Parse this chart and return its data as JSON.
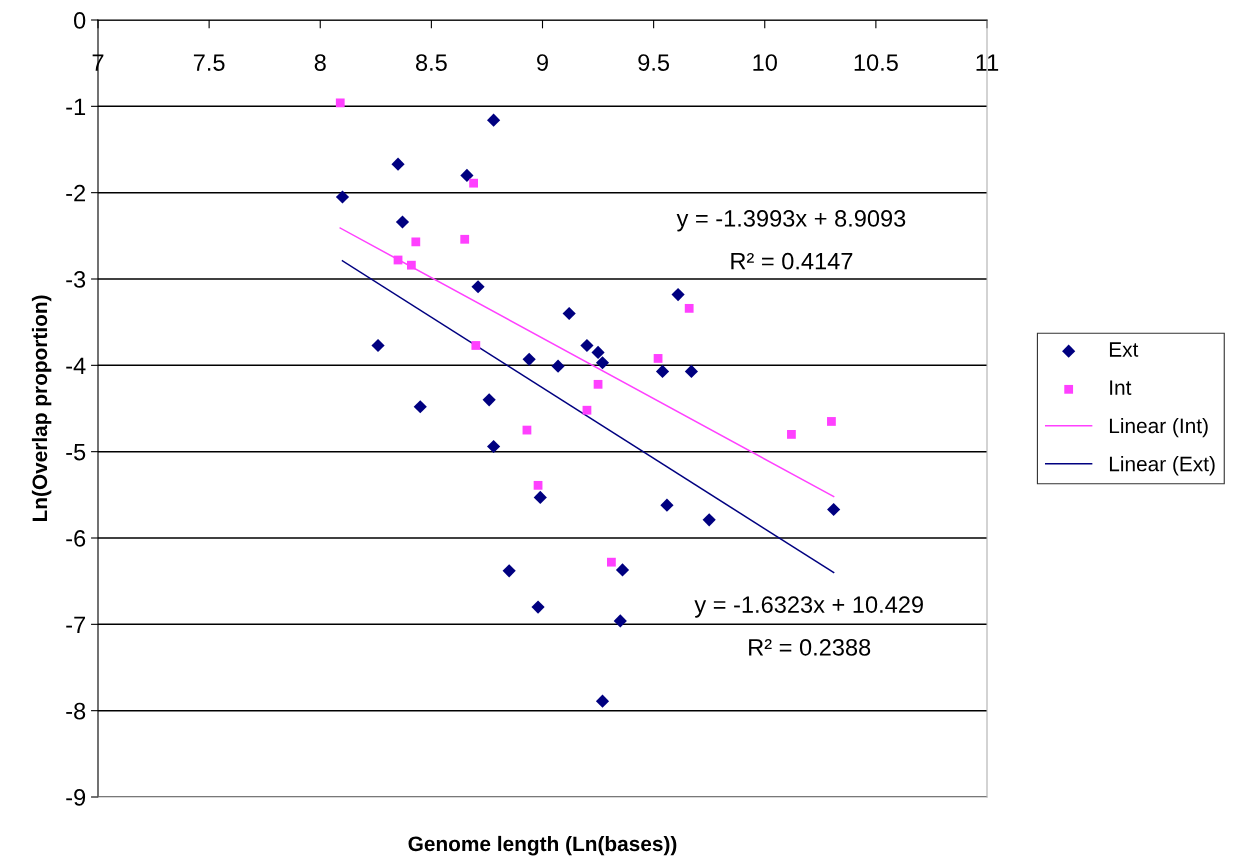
{
  "chart_data": {
    "type": "scatter",
    "xlabel": "Genome length (Ln(bases))",
    "ylabel": "Ln(Overlap proportion)",
    "xlim": [
      7,
      11
    ],
    "xticks": [
      7,
      7.5,
      8,
      8.5,
      9,
      9.5,
      10,
      10.5,
      11
    ],
    "ylim": [
      -9,
      0
    ],
    "yticks": [
      0,
      -1,
      -2,
      -3,
      -4,
      -5,
      -6,
      -7,
      -8,
      -9
    ],
    "grid": "y",
    "legend": "right",
    "series": [
      {
        "name": "Ext",
        "type": "scatter",
        "marker": "diamond",
        "color": "#000080",
        "x": [
          8.78,
          8.35,
          8.66,
          8.1,
          8.37,
          8.71,
          9.12,
          8.26,
          9.2,
          9.25,
          9.27,
          8.94,
          9.07,
          8.45,
          8.76,
          8.78,
          8.99,
          8.85,
          9.36,
          8.98,
          9.35,
          9.27,
          9.61,
          9.56,
          9.75,
          10.31,
          9.54,
          9.67
        ],
        "values": [
          -1.16,
          -1.67,
          -1.8,
          -2.05,
          -2.34,
          -3.09,
          -3.4,
          -3.77,
          -3.77,
          -3.85,
          -3.97,
          -3.93,
          -4.01,
          -4.48,
          -4.4,
          -4.94,
          -5.53,
          -6.38,
          -6.37,
          -6.8,
          -6.96,
          -7.89,
          -3.18,
          -5.62,
          -5.79,
          -5.67,
          -4.07,
          -4.07
        ]
      },
      {
        "name": "Int",
        "type": "scatter",
        "marker": "square",
        "color": "#ff40ff",
        "x": [
          8.09,
          8.69,
          8.43,
          8.65,
          8.35,
          8.41,
          8.7,
          9.52,
          9.25,
          9.2,
          8.93,
          8.98,
          9.31,
          9.66,
          10.12,
          10.3
        ],
        "values": [
          -0.96,
          -1.89,
          -2.57,
          -2.54,
          -2.78,
          -2.84,
          -3.77,
          -3.92,
          -4.22,
          -4.52,
          -4.75,
          -5.39,
          -6.28,
          -3.34,
          -4.8,
          -4.65
        ]
      },
      {
        "name": "Linear (Int)",
        "type": "line",
        "marker": "none",
        "color": "#ff40ff",
        "x": [
          8.09,
          10.31
        ],
        "values": [
          -2.41,
          -5.52
        ]
      },
      {
        "name": "Linear (Ext)",
        "type": "line",
        "marker": "none",
        "color": "#000080",
        "x": [
          8.1,
          10.31
        ],
        "values": [
          -2.79,
          -6.4
        ]
      }
    ],
    "annotations": [
      "y = -1.3993x + 8.9093",
      "R² = 0.4147",
      "y = -1.6323x + 10.429",
      "R² = 0.2388"
    ]
  }
}
